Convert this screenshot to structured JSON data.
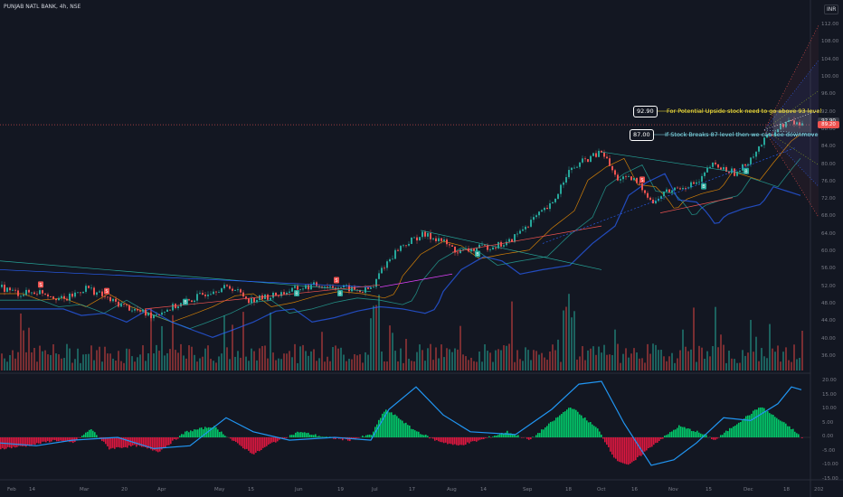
{
  "header": {
    "symbol_title": "PUNJAB NATL BANK, 4h, NSE",
    "currency": "INR"
  },
  "price_axis": {
    "ticks": [
      "112.00",
      "108.00",
      "104.00",
      "100.00",
      "96.00",
      "92.00",
      "88.00",
      "84.00",
      "80.00",
      "76.00",
      "72.00",
      "68.00",
      "64.00",
      "60.00",
      "56.00",
      "52.00",
      "48.00",
      "44.00",
      "40.00",
      "36.00"
    ],
    "current_price_label": "89.20",
    "annotation_level_label": "92.90"
  },
  "oscillator_axis": {
    "ticks": [
      "20.00",
      "15.00",
      "10.00",
      "5.00",
      "0.00",
      "-5.00",
      "-10.00",
      "-15.00"
    ]
  },
  "time_axis": {
    "ticks": [
      "Feb",
      "14",
      "Mar",
      "20",
      "Apr",
      "May",
      "15",
      "Jun",
      "19",
      "Jul",
      "17",
      "Aug",
      "14",
      "Sep",
      "18",
      "Oct",
      "16",
      "Nov",
      "15",
      "Dec",
      "18",
      "202"
    ]
  },
  "annotations": {
    "upper_level": "92.90",
    "upper_text": "For Potential Upside stock need to go above 93 level",
    "lower_level": "87.00",
    "lower_text": "If Stock Breaks 87 level then we can see downmove"
  },
  "signals": [
    "S",
    "S",
    "B",
    "B",
    "S",
    "B",
    "B",
    "S",
    "B",
    "B"
  ],
  "colors": {
    "background": "#131722",
    "up": "#26a69a",
    "down": "#ef5350",
    "osc_pos": "#00e676",
    "osc_neg": "#ff1744",
    "osc_line": "#2196f3",
    "annotation_upper": "#ffeb3b",
    "annotation_lower": "#80deea"
  }
}
